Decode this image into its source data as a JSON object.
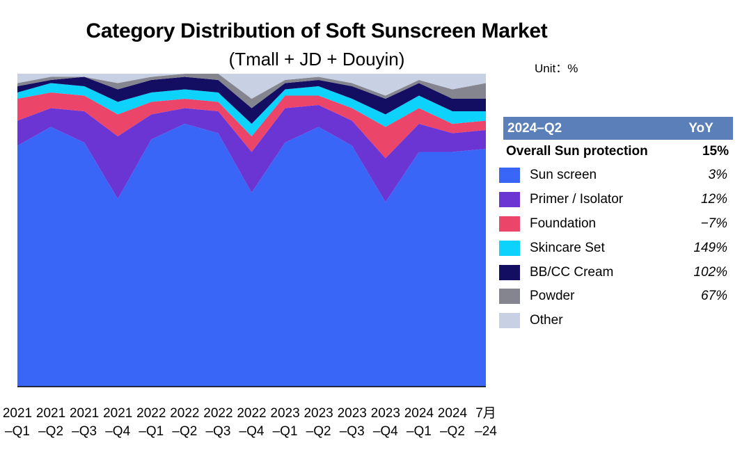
{
  "chart_data": {
    "type": "area",
    "stacked": true,
    "percent": true,
    "title": "Category Distribution of Soft Sunscreen Market",
    "subtitle": "(Tmall + JD + Douyin)",
    "unit": "Unit：%",
    "categories": [
      [
        "2021",
        "–Q1"
      ],
      [
        "2021",
        "–Q2"
      ],
      [
        "2021",
        "–Q3"
      ],
      [
        "2021",
        "–Q4"
      ],
      [
        "2022",
        "–Q1"
      ],
      [
        "2022",
        "–Q2"
      ],
      [
        "2022",
        "–Q3"
      ],
      [
        "2022",
        "–Q4"
      ],
      [
        "2023",
        "–Q1"
      ],
      [
        "2023",
        "–Q2"
      ],
      [
        "2023",
        "–Q3"
      ],
      [
        "2023",
        "–Q4"
      ],
      [
        "2024",
        "–Q1"
      ],
      [
        "2024",
        "–Q2"
      ],
      [
        "7月",
        "–24"
      ]
    ],
    "ylim": [
      0,
      100
    ],
    "series": [
      {
        "name": "Sun screen",
        "color": "#3a66f7",
        "yoy": "3%",
        "values": [
          77,
          83,
          78,
          60,
          79,
          84,
          81,
          62,
          78,
          83,
          77,
          59,
          75,
          75,
          76
        ]
      },
      {
        "name": "Primer / Isolator",
        "color": "#6b35d4",
        "yoy": "12%",
        "values": [
          8,
          6,
          10,
          20,
          8,
          5,
          7,
          13,
          11,
          7,
          8,
          14,
          9,
          6,
          6
        ]
      },
      {
        "name": "Foundation",
        "color": "#ec456a",
        "yoy": "-7%",
        "values": [
          7,
          5,
          5,
          7,
          4,
          3,
          3,
          5,
          4,
          3,
          4,
          10,
          5,
          3,
          3
        ]
      },
      {
        "name": "Skincare Set",
        "color": "#0dd2fb",
        "yoy": "149%",
        "values": [
          2,
          3,
          3,
          4,
          3,
          3,
          3,
          4,
          2,
          3,
          3,
          4,
          4,
          4,
          3
        ]
      },
      {
        "name": "BB/CC Cream",
        "color": "#140e63",
        "yoy": "102%",
        "values": [
          2,
          1,
          3,
          4,
          4,
          4,
          4,
          5,
          2,
          2,
          4,
          5,
          4,
          4,
          4
        ]
      },
      {
        "name": "Powder",
        "color": "#858590",
        "yoy": "67%",
        "values": [
          1,
          1,
          0,
          2,
          1,
          1,
          2,
          3,
          1,
          1,
          1,
          1,
          1,
          3,
          5
        ]
      },
      {
        "name": "Other",
        "color": "#c7d1e3",
        "yoy": "",
        "values": [
          3,
          1,
          1,
          3,
          1,
          0,
          0,
          8,
          2,
          1,
          3,
          7,
          2,
          5,
          3
        ]
      }
    ],
    "legend": {
      "position": "right",
      "header_period": "2024–Q2",
      "header_yoy": "YoY",
      "overall_label": "Overall Sun protection",
      "overall_yoy": "15%"
    }
  }
}
